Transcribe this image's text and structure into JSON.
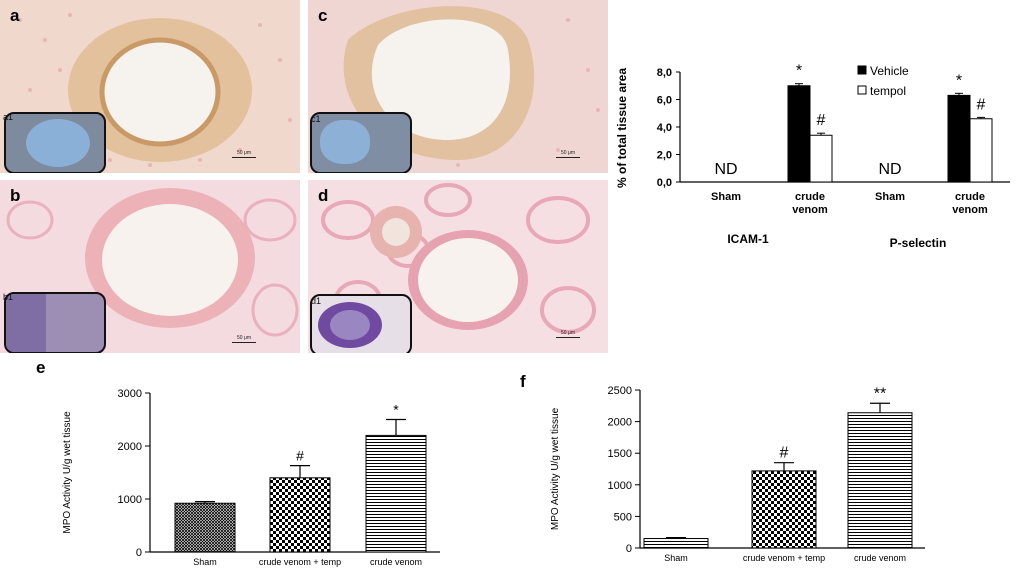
{
  "panels": [
    {
      "label": "a",
      "inset": "a1",
      "scale": "50 μm"
    },
    {
      "label": "b",
      "inset": "b1",
      "scale": "50 μm"
    },
    {
      "label": "c",
      "inset": "c1",
      "scale": "50 μm"
    },
    {
      "label": "d",
      "inset": "d1",
      "scale": "50 μm"
    }
  ],
  "chart_data": [
    {
      "type": "bar",
      "panel": "",
      "ylabel": "% of total tissue area",
      "ylim": [
        0,
        8
      ],
      "yticks": [
        "0,0",
        "2,0",
        "4,0",
        "6,0",
        "8,0"
      ],
      "groups": [
        {
          "name": "ICAM-1",
          "categories": [
            "Sham",
            "crude venom"
          ]
        },
        {
          "name": "P-selectin",
          "categories": [
            "Sham",
            "crude venom"
          ]
        }
      ],
      "category_labels": [
        [
          "Sham"
        ],
        [
          "crude",
          "venom"
        ],
        [
          "Sham"
        ],
        [
          "crude",
          "venom"
        ]
      ],
      "series": [
        {
          "name": "Vehicle",
          "color": "#000000",
          "values": [
            null,
            7.0,
            null,
            6.3
          ],
          "errors": [
            null,
            0.15,
            null,
            0.15
          ],
          "annotations": [
            "",
            "*",
            "",
            "*"
          ]
        },
        {
          "name": "tempol",
          "color": "#ffffff",
          "values": [
            null,
            3.4,
            null,
            4.6
          ],
          "errors": [
            null,
            0.15,
            null,
            0.1
          ],
          "annotations": [
            "",
            "#",
            "",
            "#"
          ]
        }
      ],
      "nd_label": "ND",
      "legend": "top-right"
    },
    {
      "type": "bar",
      "panel": "e",
      "ylabel": "MPO Activity U/g wet tissue",
      "ylim": [
        0,
        3000
      ],
      "yticks": [
        "0",
        "1000",
        "2000",
        "3000"
      ],
      "categories": [
        "Sham",
        "crude venom + temp",
        "crude venom"
      ],
      "values": [
        920,
        1400,
        2200
      ],
      "errors": [
        30,
        230,
        300
      ],
      "annotations": [
        "",
        "#",
        "*"
      ],
      "patterns": [
        "hatch",
        "check",
        "hline"
      ]
    },
    {
      "type": "bar",
      "panel": "f",
      "ylabel": "MPO Activity U/g wet tissue",
      "ylim": [
        0,
        2500
      ],
      "yticks": [
        "0",
        "500",
        "1000",
        "1500",
        "2000",
        "2500"
      ],
      "categories": [
        "Sham",
        "crude venom + temp",
        "crude venom"
      ],
      "values": [
        150,
        1220,
        2140
      ],
      "errors": [
        15,
        130,
        150
      ],
      "annotations": [
        "",
        "#",
        "**"
      ],
      "patterns": [
        "hline",
        "check",
        "hline"
      ]
    }
  ]
}
